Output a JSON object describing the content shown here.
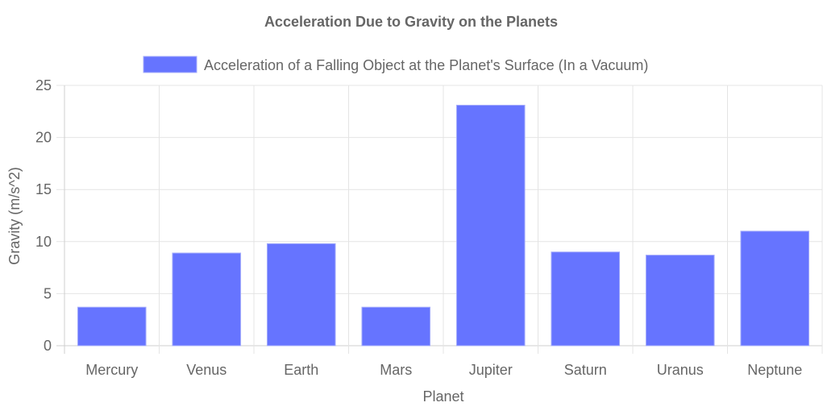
{
  "chart_data": {
    "type": "bar",
    "title": "Acceleration Due to Gravity on the Planets",
    "xlabel": "Planet",
    "ylabel": "Gravity (m/s^2)",
    "categories": [
      "Mercury",
      "Venus",
      "Earth",
      "Mars",
      "Jupiter",
      "Saturn",
      "Uranus",
      "Neptune"
    ],
    "series": [
      {
        "name": "Acceleration of a Falling Object at the Planet's Surface (In a Vacuum)",
        "values": [
          3.7,
          8.9,
          9.8,
          3.7,
          23.1,
          9.0,
          8.7,
          11.0
        ],
        "color": "#6674ff",
        "border_color": "#a5adfb"
      }
    ],
    "ylim": [
      0,
      25
    ],
    "yticks": [
      0,
      5,
      10,
      15,
      20,
      25
    ],
    "grid": true,
    "legend_position": "top"
  }
}
